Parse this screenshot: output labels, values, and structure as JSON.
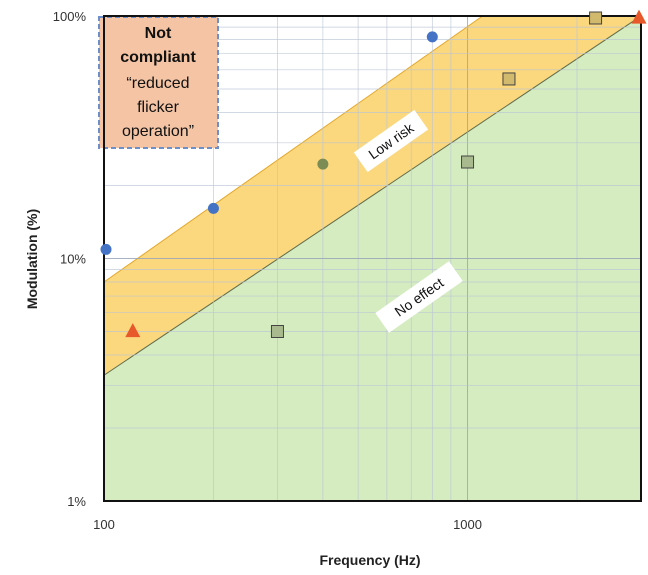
{
  "chart_data": {
    "type": "scatter",
    "xlabel": "Frequency (Hz)",
    "ylabel": "Modulation (%)",
    "x_scale": "log",
    "y_scale": "log",
    "xlim": [
      100,
      3000
    ],
    "ylim": [
      1,
      100
    ],
    "x_ticks": [
      {
        "value": 100,
        "label": "100"
      },
      {
        "value": 1000,
        "label": "1000"
      }
    ],
    "y_ticks": [
      {
        "value": 1,
        "label": "1%"
      },
      {
        "value": 10,
        "label": "10%"
      },
      {
        "value": 100,
        "label": "100%"
      }
    ],
    "grid": true,
    "zones": [
      {
        "label": "Low risk",
        "color": "#fbd77e",
        "upper_boundary": [
          [
            100,
            8
          ],
          [
            1100,
            100
          ]
        ],
        "lower_boundary": [
          [
            100,
            3.3
          ],
          [
            3000,
            100
          ]
        ]
      },
      {
        "label": "No effect",
        "color": "#d5ecc0",
        "upper_boundary": [
          [
            100,
            3.3
          ],
          [
            3000,
            100
          ]
        ]
      }
    ],
    "annotation": {
      "lines": [
        "Not",
        "compliant",
        "“reduced",
        "flicker",
        "operation”"
      ],
      "fill": "#f4c4a4",
      "border": "#6d8fcc"
    },
    "series": [
      {
        "marker": "circle",
        "color": "#4472c4",
        "points": [
          [
            100,
            10.9
          ],
          [
            200,
            16.1
          ],
          [
            800,
            82
          ]
        ]
      },
      {
        "marker": "circle",
        "color": "#7d8c55",
        "points": [
          [
            400,
            24.5
          ]
        ]
      },
      {
        "marker": "square",
        "color": "#a9bb8e",
        "points": [
          [
            300,
            5.0
          ],
          [
            1000,
            25
          ]
        ]
      },
      {
        "marker": "square",
        "color": "#d1b96e",
        "points": [
          [
            1300,
            55
          ],
          [
            2250,
            99
          ]
        ]
      },
      {
        "marker": "triangle",
        "color": "#e7582a",
        "points": [
          [
            120,
            5.0
          ],
          [
            3000,
            100
          ]
        ]
      }
    ]
  }
}
